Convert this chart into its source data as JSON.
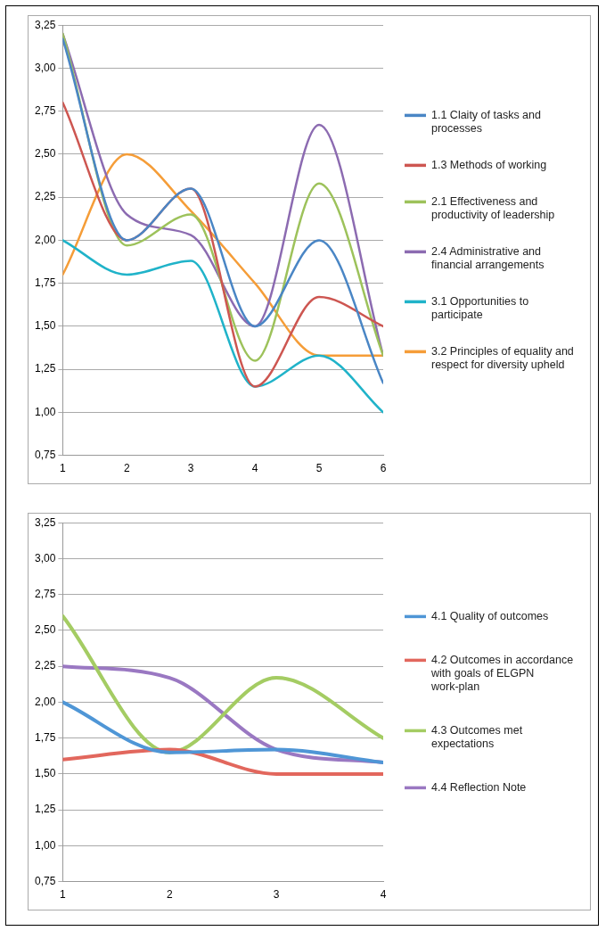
{
  "chart_data": [
    {
      "type": "line",
      "x": [
        1,
        2,
        3,
        4,
        5,
        6
      ],
      "xlim": [
        1,
        6
      ],
      "xticks": [
        1,
        2,
        3,
        4,
        5,
        6
      ],
      "ylim": [
        0.75,
        3.25
      ],
      "yticks": [
        {
          "value": 0.75,
          "label": "0,75"
        },
        {
          "value": 1,
          "label": "1,00"
        },
        {
          "value": 1.25,
          "label": "1,25"
        },
        {
          "value": 1.5,
          "label": "1,50"
        },
        {
          "value": 1.75,
          "label": "1,75"
        },
        {
          "value": 2,
          "label": "2,00"
        },
        {
          "value": 2.25,
          "label": "2,25"
        },
        {
          "value": 2.5,
          "label": "2,50"
        },
        {
          "value": 2.75,
          "label": "2,75"
        },
        {
          "value": 3,
          "label": "3,00"
        },
        {
          "value": 3.25,
          "label": "3,25"
        }
      ],
      "grid": "y",
      "legend": "right",
      "marker": "none",
      "line_style": "solid",
      "series": [
        {
          "name": "1.1 Claity of tasks and processes",
          "color": "#4a86c5",
          "values": [
            3.17,
            2.0,
            2.3,
            1.5,
            2.0,
            1.17
          ]
        },
        {
          "name": "1.3 Methods of working",
          "color": "#cd5651",
          "values": [
            2.8,
            2.0,
            2.3,
            1.15,
            1.67,
            1.5
          ]
        },
        {
          "name": "2.1 Effectiveness and productivity of leadership",
          "color": "#9dc25b",
          "values": [
            3.2,
            1.97,
            2.15,
            1.3,
            2.33,
            1.33
          ]
        },
        {
          "name": "2.4 Administrative and financial arrangements",
          "color": "#8c6bb1",
          "values": [
            3.2,
            2.15,
            2.03,
            1.5,
            2.67,
            1.33
          ]
        },
        {
          "name": "3.1 Opportunities to participate",
          "color": "#20b3c9",
          "values": [
            2.0,
            1.8,
            1.88,
            1.15,
            1.33,
            1.0
          ]
        },
        {
          "name": "3.2 Principles of equality and respect for diversity upheld",
          "color": "#f59d38",
          "values": [
            1.8,
            2.5,
            2.17,
            1.75,
            1.33,
            1.33
          ]
        }
      ]
    },
    {
      "type": "line",
      "x": [
        1,
        2,
        3,
        4
      ],
      "xlim": [
        1,
        4
      ],
      "xticks": [
        1,
        2,
        3,
        4
      ],
      "ylim": [
        0.75,
        3.25
      ],
      "yticks": [
        {
          "value": 0.75,
          "label": "0,75"
        },
        {
          "value": 1,
          "label": "1,00"
        },
        {
          "value": 1.25,
          "label": "1,25"
        },
        {
          "value": 1.5,
          "label": "1,50"
        },
        {
          "value": 1.75,
          "label": "1,75"
        },
        {
          "value": 2,
          "label": "2,00"
        },
        {
          "value": 2.25,
          "label": "2,25"
        },
        {
          "value": 2.5,
          "label": "2,50"
        },
        {
          "value": 2.75,
          "label": "2,75"
        },
        {
          "value": 3,
          "label": "3,00"
        },
        {
          "value": 3.25,
          "label": "3,25"
        }
      ],
      "grid": "y",
      "legend": "right",
      "marker": "none",
      "line_style": "solid",
      "series": [
        {
          "name": "4.1 Quality of outcomes",
          "color": "#4f96d6",
          "values": [
            2.0,
            1.65,
            1.67,
            1.58
          ]
        },
        {
          "name": "4.2 Outcomes in accordance with goals of ELGPN work-plan",
          "color": "#e2675d",
          "values": [
            1.6,
            1.67,
            1.5,
            1.5
          ]
        },
        {
          "name": "4.3 Outcomes met expectations",
          "color": "#a4cc63",
          "values": [
            2.6,
            1.65,
            2.17,
            1.75
          ]
        },
        {
          "name": "4.4 Reflection Note",
          "color": "#9a78c2",
          "values": [
            2.25,
            2.17,
            1.67,
            1.58
          ]
        }
      ]
    }
  ]
}
